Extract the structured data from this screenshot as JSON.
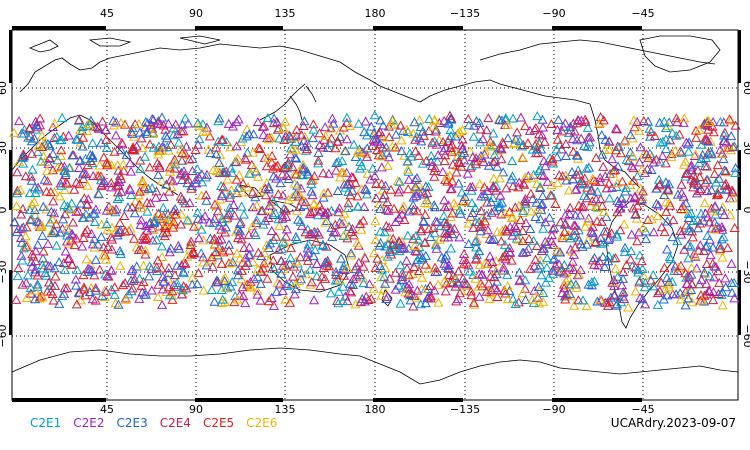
{
  "map": {
    "top_lon_labels": [
      "45",
      "90",
      "135",
      "180",
      "−135",
      "−90",
      "−45"
    ],
    "bottom_lon_labels": [
      "45",
      "90",
      "135",
      "180",
      "−135",
      "−90",
      "−45"
    ],
    "left_lat_labels": [
      "60",
      "30",
      "0",
      "−30",
      "−60"
    ],
    "right_lat_labels": [
      "60",
      "30",
      "0",
      "−30",
      "−60"
    ],
    "lat_range": [
      -90,
      90
    ],
    "lon_range": [
      0,
      360
    ],
    "grid": "dotted",
    "marker": "open-triangle"
  },
  "legend": {
    "items": [
      {
        "label": "C2E1",
        "color": "#00a0c8"
      },
      {
        "label": "C2E2",
        "color": "#a020c8"
      },
      {
        "label": "C2E3",
        "color": "#1e64dc"
      },
      {
        "label": "C2E4",
        "color": "#c81e50"
      },
      {
        "label": "C2E5",
        "color": "#e61e1e"
      },
      {
        "label": "C2E6",
        "color": "#f0b400"
      }
    ]
  },
  "footer": {
    "label": "UCARdry.2023-09-07"
  }
}
